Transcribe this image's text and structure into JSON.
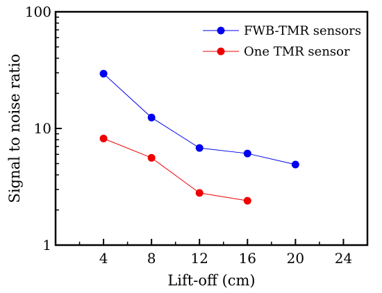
{
  "chart_data": {
    "type": "line",
    "xlabel": "Lift-off (cm)",
    "ylabel": "Signal to noise ratio",
    "xlim": [
      0,
      26
    ],
    "ylim": [
      1,
      100
    ],
    "y_scale": "log",
    "x_ticks": [
      4,
      8,
      12,
      16,
      20,
      24
    ],
    "y_ticks": [
      1,
      10,
      100
    ],
    "y_tick_labels": [
      "1",
      "10",
      "100"
    ],
    "grid": false,
    "legend_position": "top-right",
    "series": [
      {
        "name": "FWB-TMR sensors",
        "color": "#0000ee",
        "marker": "circle",
        "x": [
          4,
          8,
          12,
          16,
          20
        ],
        "y": [
          29.5,
          12.4,
          6.8,
          6.1,
          4.9
        ]
      },
      {
        "name": "One TMR sensor",
        "color": "#ee0000",
        "marker": "circle",
        "x": [
          4,
          8,
          12,
          16
        ],
        "y": [
          8.2,
          5.6,
          2.8,
          2.4
        ]
      }
    ]
  }
}
